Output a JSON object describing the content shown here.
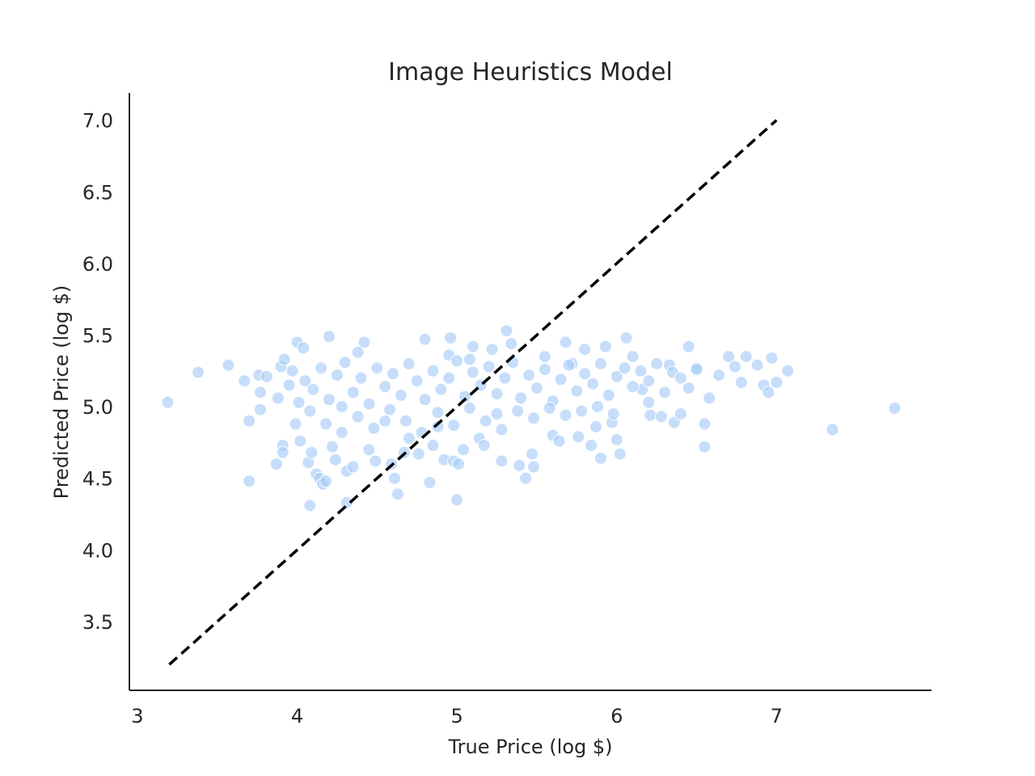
{
  "chart_data": {
    "type": "scatter",
    "title": "Image Heuristics Model",
    "xlabel": "True Price (log $)",
    "ylabel": "Predicted Price (log $)",
    "xlim": [
      2.95,
      7.97
    ],
    "ylim": [
      3.02,
      7.19
    ],
    "xticks": [
      3,
      4,
      5,
      6,
      7
    ],
    "yticks": [
      3.5,
      4.0,
      4.5,
      5.0,
      5.5,
      6.0,
      6.5,
      7.0
    ],
    "xtick_labels": [
      "3",
      "4",
      "5",
      "6",
      "7"
    ],
    "ytick_labels": [
      "3.5",
      "4.0",
      "4.5",
      "5.0",
      "5.5",
      "6.0",
      "6.5",
      "7.0"
    ],
    "grid": false,
    "legend": "none",
    "point_color": "#a8cdf7",
    "reference_line": {
      "style": "dashed",
      "color": "#000000",
      "x": [
        3.2,
        7.0
      ],
      "y": [
        3.2,
        7.0
      ]
    },
    "series": [
      {
        "points": [
          [
            3.19,
            5.03
          ],
          [
            3.38,
            5.24
          ],
          [
            3.57,
            5.29
          ],
          [
            3.67,
            5.18
          ],
          [
            3.7,
            4.48
          ],
          [
            3.7,
            4.9
          ],
          [
            3.76,
            5.22
          ],
          [
            3.77,
            5.1
          ],
          [
            3.77,
            4.98
          ],
          [
            3.81,
            5.21
          ],
          [
            3.87,
            4.6
          ],
          [
            3.88,
            5.06
          ],
          [
            3.9,
            5.28
          ],
          [
            3.91,
            4.73
          ],
          [
            3.91,
            4.68
          ],
          [
            3.92,
            5.33
          ],
          [
            3.95,
            5.15
          ],
          [
            3.97,
            5.25
          ],
          [
            3.99,
            4.88
          ],
          [
            4.0,
            5.45
          ],
          [
            4.01,
            5.03
          ],
          [
            4.02,
            4.76
          ],
          [
            4.04,
            5.41
          ],
          [
            4.07,
            4.61
          ],
          [
            4.08,
            4.31
          ],
          [
            4.09,
            4.68
          ],
          [
            4.12,
            4.53
          ],
          [
            4.14,
            4.5
          ],
          [
            4.16,
            4.46
          ],
          [
            4.18,
            4.48
          ],
          [
            4.2,
            5.49
          ],
          [
            4.22,
            4.72
          ],
          [
            4.24,
            4.63
          ],
          [
            4.28,
            4.82
          ],
          [
            4.31,
            4.55
          ],
          [
            4.31,
            4.33
          ],
          [
            4.35,
            4.58
          ],
          [
            4.38,
            5.38
          ],
          [
            4.42,
            5.45
          ],
          [
            4.45,
            4.7
          ],
          [
            4.49,
            4.62
          ],
          [
            4.55,
            4.9
          ],
          [
            4.59,
            4.6
          ],
          [
            4.61,
            4.5
          ],
          [
            4.63,
            4.39
          ],
          [
            4.67,
            4.68
          ],
          [
            4.7,
            4.78
          ],
          [
            4.76,
            4.67
          ],
          [
            4.8,
            5.47
          ],
          [
            4.83,
            4.47
          ],
          [
            4.85,
            4.73
          ],
          [
            4.88,
            4.86
          ],
          [
            4.92,
            4.63
          ],
          [
            4.95,
            5.36
          ],
          [
            4.96,
            5.48
          ],
          [
            4.98,
            4.62
          ],
          [
            5.0,
            4.35
          ],
          [
            5.01,
            4.6
          ],
          [
            5.04,
            4.7
          ],
          [
            5.08,
            5.33
          ],
          [
            5.1,
            5.42
          ],
          [
            5.14,
            4.78
          ],
          [
            5.17,
            4.73
          ],
          [
            5.22,
            5.4
          ],
          [
            5.25,
            4.95
          ],
          [
            5.28,
            4.62
          ],
          [
            5.31,
            5.53
          ],
          [
            5.34,
            5.44
          ],
          [
            5.39,
            4.59
          ],
          [
            5.43,
            4.5
          ],
          [
            5.47,
            4.67
          ],
          [
            5.48,
            4.58
          ],
          [
            5.55,
            5.35
          ],
          [
            5.6,
            4.8
          ],
          [
            5.64,
            4.76
          ],
          [
            5.68,
            5.45
          ],
          [
            5.72,
            5.3
          ],
          [
            5.76,
            4.79
          ],
          [
            5.8,
            5.4
          ],
          [
            5.84,
            4.73
          ],
          [
            5.87,
            4.86
          ],
          [
            5.9,
            4.64
          ],
          [
            5.93,
            5.42
          ],
          [
            5.97,
            4.89
          ],
          [
            6.0,
            4.77
          ],
          [
            6.02,
            4.67
          ],
          [
            6.06,
            5.48
          ],
          [
            6.1,
            5.35
          ],
          [
            6.16,
            5.12
          ],
          [
            6.2,
            5.03
          ],
          [
            6.21,
            4.94
          ],
          [
            6.28,
            4.93
          ],
          [
            6.33,
            5.29
          ],
          [
            6.36,
            4.89
          ],
          [
            6.4,
            4.95
          ],
          [
            6.45,
            5.42
          ],
          [
            6.5,
            5.27
          ],
          [
            6.55,
            4.88
          ],
          [
            6.55,
            4.72
          ],
          [
            6.58,
            5.06
          ],
          [
            6.64,
            5.22
          ],
          [
            6.7,
            5.35
          ],
          [
            6.74,
            5.28
          ],
          [
            6.78,
            5.17
          ],
          [
            6.81,
            5.35
          ],
          [
            6.88,
            5.29
          ],
          [
            6.92,
            5.15
          ],
          [
            6.95,
            5.1
          ],
          [
            6.97,
            5.34
          ],
          [
            7.0,
            5.17
          ],
          [
            7.07,
            5.25
          ],
          [
            7.35,
            4.84
          ],
          [
            7.74,
            4.99
          ],
          [
            4.05,
            5.18
          ],
          [
            4.1,
            5.12
          ],
          [
            4.15,
            5.27
          ],
          [
            4.2,
            5.05
          ],
          [
            4.25,
            5.22
          ],
          [
            4.3,
            5.31
          ],
          [
            4.35,
            5.1
          ],
          [
            4.4,
            5.2
          ],
          [
            4.45,
            5.02
          ],
          [
            4.5,
            5.27
          ],
          [
            4.55,
            5.14
          ],
          [
            4.6,
            5.23
          ],
          [
            4.65,
            5.08
          ],
          [
            4.7,
            5.3
          ],
          [
            4.75,
            5.18
          ],
          [
            4.8,
            5.05
          ],
          [
            4.85,
            5.25
          ],
          [
            4.9,
            5.12
          ],
          [
            4.95,
            5.2
          ],
          [
            5.0,
            5.32
          ],
          [
            5.05,
            5.07
          ],
          [
            5.1,
            5.24
          ],
          [
            5.15,
            5.15
          ],
          [
            5.2,
            5.28
          ],
          [
            5.25,
            5.09
          ],
          [
            5.3,
            5.2
          ],
          [
            5.35,
            5.31
          ],
          [
            5.4,
            5.06
          ],
          [
            5.45,
            5.22
          ],
          [
            5.5,
            5.13
          ],
          [
            5.55,
            5.26
          ],
          [
            5.6,
            5.04
          ],
          [
            5.65,
            5.19
          ],
          [
            5.7,
            5.29
          ],
          [
            5.75,
            5.11
          ],
          [
            5.8,
            5.23
          ],
          [
            5.85,
            5.16
          ],
          [
            5.9,
            5.3
          ],
          [
            5.95,
            5.08
          ],
          [
            6.0,
            5.21
          ],
          [
            6.05,
            5.27
          ],
          [
            6.1,
            5.14
          ],
          [
            6.15,
            5.25
          ],
          [
            6.2,
            5.18
          ],
          [
            6.25,
            5.3
          ],
          [
            6.3,
            5.1
          ],
          [
            6.35,
            5.24
          ],
          [
            6.4,
            5.2
          ],
          [
            6.45,
            5.13
          ],
          [
            6.5,
            5.26
          ],
          [
            4.08,
            4.97
          ],
          [
            4.18,
            4.88
          ],
          [
            4.28,
            5.0
          ],
          [
            4.38,
            4.93
          ],
          [
            4.48,
            4.85
          ],
          [
            4.58,
            4.98
          ],
          [
            4.68,
            4.9
          ],
          [
            4.78,
            4.82
          ],
          [
            4.88,
            4.96
          ],
          [
            4.98,
            4.87
          ],
          [
            5.08,
            4.99
          ],
          [
            5.18,
            4.9
          ],
          [
            5.28,
            4.84
          ],
          [
            5.38,
            4.97
          ],
          [
            5.48,
            4.92
          ],
          [
            5.58,
            4.99
          ],
          [
            5.68,
            4.94
          ],
          [
            5.78,
            4.97
          ],
          [
            5.88,
            5.0
          ],
          [
            5.98,
            4.95
          ]
        ]
      }
    ]
  }
}
